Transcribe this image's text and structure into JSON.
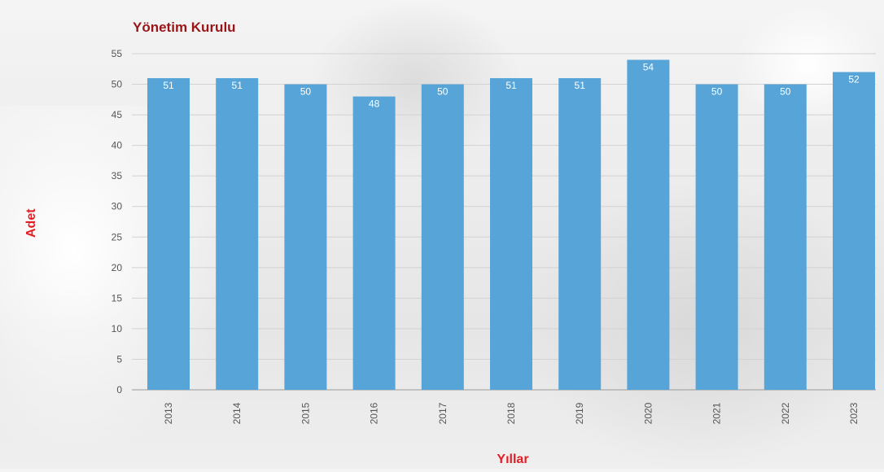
{
  "chart_data": {
    "type": "bar",
    "title": "Yönetim Kurulu",
    "xlabel": "Yıllar",
    "ylabel": "Adet",
    "categories": [
      "2013",
      "2014",
      "2015",
      "2016",
      "2017",
      "2018",
      "2019",
      "2020",
      "2021",
      "2022",
      "2023"
    ],
    "values": [
      51,
      51,
      50,
      48,
      50,
      51,
      51,
      54,
      50,
      50,
      52
    ],
    "y_ticks": [
      "0",
      "5",
      "10",
      "15",
      "20",
      "25",
      "30",
      "35",
      "40",
      "45",
      "50",
      "55"
    ],
    "ylim": [
      0,
      55
    ],
    "grid": true,
    "bar_color": "#57a5d8",
    "title_color": "#9b1418",
    "axis_label_color": "#e31e24"
  }
}
